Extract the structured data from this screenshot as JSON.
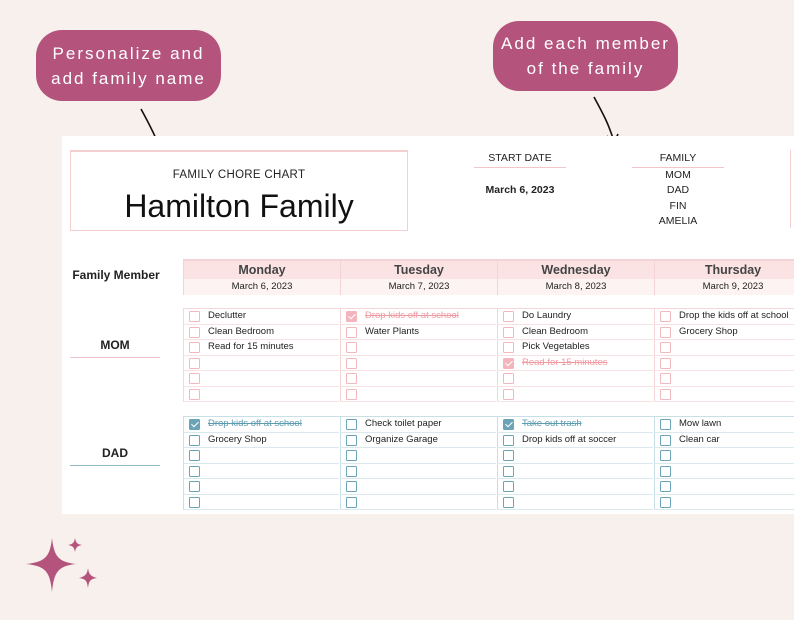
{
  "callouts": {
    "left": [
      "Personalize and",
      "add family name"
    ],
    "right": [
      "Add each member",
      "of the family"
    ]
  },
  "header": {
    "caption": "FAMILY CHORE CHART",
    "family_name": "Hamilton Family",
    "start_date_label": "START DATE",
    "start_date": "March 6, 2023",
    "family_label": "FAMILY",
    "members": [
      "MOM",
      "DAD",
      "FIN",
      "AMELIA"
    ]
  },
  "table": {
    "member_header": "Family Member",
    "days": [
      {
        "name": "Monday",
        "date": "March 6, 2023"
      },
      {
        "name": "Tuesday",
        "date": "March 7, 2023"
      },
      {
        "name": "Wednesday",
        "date": "March 8, 2023"
      },
      {
        "name": "Thursday",
        "date": "March 9, 2023"
      }
    ],
    "mom": {
      "label": "MOM",
      "tasks": [
        [
          {
            "text": "Declutter",
            "done": false
          },
          {
            "text": "Clean Bedroom",
            "done": false
          },
          {
            "text": "Read for 15 minutes",
            "done": false
          },
          {
            "text": "",
            "done": false
          },
          {
            "text": "",
            "done": false
          },
          {
            "text": "",
            "done": false
          }
        ],
        [
          {
            "text": "Drop kids off at school",
            "done": true
          },
          {
            "text": "Water Plants",
            "done": false
          },
          {
            "text": "",
            "done": false
          },
          {
            "text": "",
            "done": false
          },
          {
            "text": "",
            "done": false
          },
          {
            "text": "",
            "done": false
          }
        ],
        [
          {
            "text": "Do Laundry",
            "done": false
          },
          {
            "text": "Clean Bedroom",
            "done": false
          },
          {
            "text": "Pick Vegetables",
            "done": false
          },
          {
            "text": "Read for 15 minutes",
            "done": true
          },
          {
            "text": "",
            "done": false
          },
          {
            "text": "",
            "done": false
          }
        ],
        [
          {
            "text": "Drop the kids off at school",
            "done": false
          },
          {
            "text": "Grocery Shop",
            "done": false
          },
          {
            "text": "",
            "done": false
          },
          {
            "text": "",
            "done": false
          },
          {
            "text": "",
            "done": false
          },
          {
            "text": "",
            "done": false
          }
        ]
      ]
    },
    "dad": {
      "label": "DAD",
      "tasks": [
        [
          {
            "text": "Drop kids off at school",
            "done": true
          },
          {
            "text": "Grocery Shop",
            "done": false
          },
          {
            "text": "",
            "done": false
          },
          {
            "text": "",
            "done": false
          },
          {
            "text": "",
            "done": false
          },
          {
            "text": "",
            "done": false
          }
        ],
        [
          {
            "text": "Check toilet paper",
            "done": false
          },
          {
            "text": "Organize Garage",
            "done": false
          },
          {
            "text": "",
            "done": false
          },
          {
            "text": "",
            "done": false
          },
          {
            "text": "",
            "done": false
          },
          {
            "text": "",
            "done": false
          }
        ],
        [
          {
            "text": "Take out trash",
            "done": true
          },
          {
            "text": "Drop kids off at soccer",
            "done": false
          },
          {
            "text": "",
            "done": false
          },
          {
            "text": "",
            "done": false
          },
          {
            "text": "",
            "done": false
          },
          {
            "text": "",
            "done": false
          }
        ],
        [
          {
            "text": "Mow lawn",
            "done": false
          },
          {
            "text": "Clean car",
            "done": false
          },
          {
            "text": "",
            "done": false
          },
          {
            "text": "",
            "done": false
          },
          {
            "text": "",
            "done": false
          },
          {
            "text": "",
            "done": false
          }
        ]
      ]
    }
  },
  "colors": {
    "callout": "#b4547d",
    "mom_accent": "#f3b5bb",
    "dad_accent": "#6aa4b6",
    "background": "#f8f0ec"
  }
}
